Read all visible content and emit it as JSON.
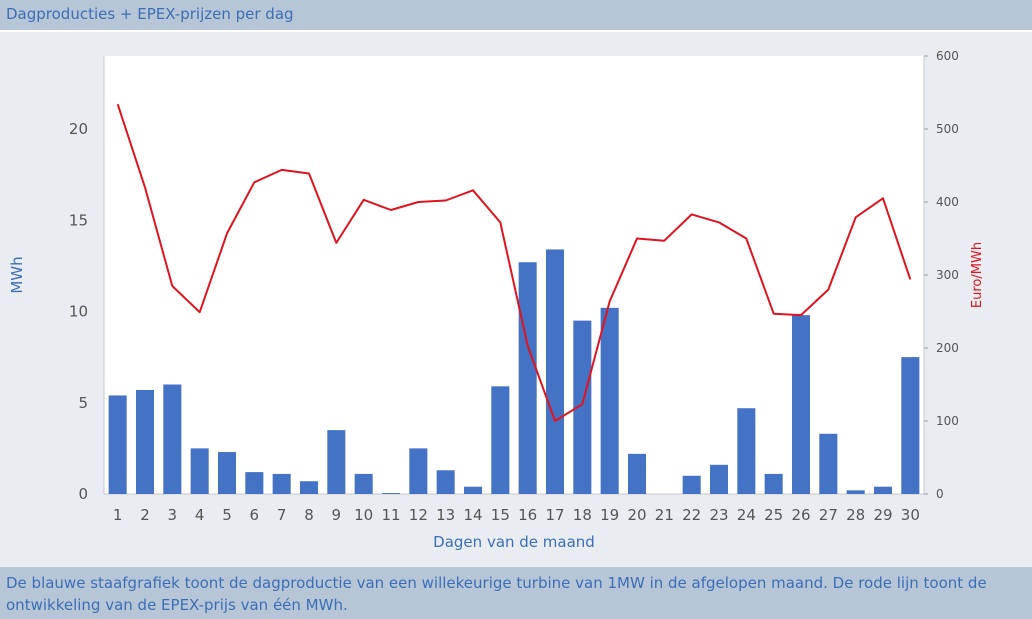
{
  "header": {
    "title": "Dagproducties + EPEX-prijzen per dag"
  },
  "footer": {
    "caption": "De blauwe staafgrafiek toont de dagproductie van een willekeurige turbine van 1MW in de afgelopen maand. De rode lijn toont de ontwikkeling van de EPEX-prijs van één MWh."
  },
  "colors": {
    "bar": "#4472c4",
    "line": "#e0141e",
    "left_axis_label": "#3a6fb7",
    "right_axis_label": "#e0141e",
    "tick_text": "#555555"
  },
  "chart_data": {
    "type": "bar",
    "title": "Dagproducties + EPEX-prijzen per dag",
    "xlabel": "Dagen van de maand",
    "ylabel": "MWh",
    "y2label": "Euro/MWh",
    "ylim": [
      0,
      24
    ],
    "y2lim": [
      0,
      600
    ],
    "yticks": [
      0,
      5,
      10,
      15,
      20
    ],
    "y2ticks": [
      0,
      100,
      200,
      300,
      400,
      500,
      600
    ],
    "grid": false,
    "categories": [
      "1",
      "2",
      "3",
      "4",
      "5",
      "6",
      "7",
      "8",
      "9",
      "10",
      "11",
      "12",
      "13",
      "14",
      "15",
      "16",
      "17",
      "18",
      "19",
      "20",
      "21",
      "22",
      "23",
      "24",
      "25",
      "26",
      "27",
      "28",
      "29",
      "30"
    ],
    "series": [
      {
        "type": "bar",
        "axis": "left",
        "values": [
          5.4,
          5.7,
          6.0,
          2.5,
          2.3,
          1.2,
          1.1,
          0.7,
          3.5,
          1.1,
          0.05,
          2.5,
          1.3,
          0.4,
          5.9,
          12.7,
          13.4,
          9.5,
          10.2,
          2.2,
          0,
          1.0,
          1.6,
          4.7,
          1.1,
          9.8,
          3.3,
          0.2,
          0.4,
          7.5
        ]
      },
      {
        "type": "line",
        "axis": "right",
        "values": [
          534,
          420,
          285,
          249,
          357,
          427,
          444,
          439,
          344,
          403,
          389,
          400,
          402,
          416,
          372,
          203,
          100,
          123,
          264,
          350,
          347,
          383,
          372,
          350,
          247,
          245,
          280,
          379,
          405,
          294
        ]
      }
    ]
  }
}
